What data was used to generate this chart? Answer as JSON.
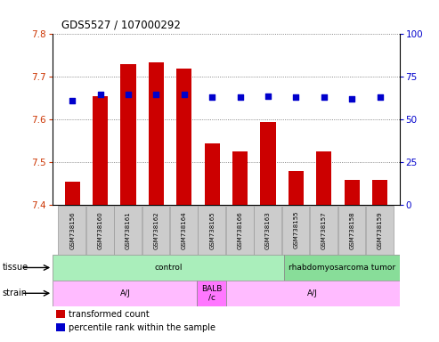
{
  "title": "GDS5527 / 107000292",
  "samples": [
    "GSM738156",
    "GSM738160",
    "GSM738161",
    "GSM738162",
    "GSM738164",
    "GSM738165",
    "GSM738166",
    "GSM738163",
    "GSM738155",
    "GSM738157",
    "GSM738158",
    "GSM738159"
  ],
  "transformed_count": [
    7.455,
    7.655,
    7.73,
    7.735,
    7.72,
    7.545,
    7.525,
    7.595,
    7.48,
    7.525,
    7.46,
    7.46
  ],
  "percentile_rank": [
    61,
    65,
    65,
    65,
    65,
    63,
    63,
    64,
    63,
    63,
    62,
    63
  ],
  "ylim_left": [
    7.4,
    7.8
  ],
  "ylim_right": [
    0,
    100
  ],
  "yticks_left": [
    7.4,
    7.5,
    7.6,
    7.7,
    7.8
  ],
  "yticks_right": [
    0,
    25,
    50,
    75,
    100
  ],
  "bar_color": "#cc0000",
  "dot_color": "#0000cc",
  "tissue_labels": [
    {
      "text": "control",
      "start": 0,
      "end": 7,
      "color": "#aaeebb"
    },
    {
      "text": "rhabdomyosarcoma tumor",
      "start": 8,
      "end": 11,
      "color": "#88dd99"
    }
  ],
  "strain_labels": [
    {
      "text": "A/J",
      "start": 0,
      "end": 4,
      "color": "#ffbbff"
    },
    {
      "text": "BALB\n/c",
      "start": 5,
      "end": 5,
      "color": "#ff77ff"
    },
    {
      "text": "A/J",
      "start": 6,
      "end": 11,
      "color": "#ffbbff"
    }
  ],
  "tissue_row_label": "tissue",
  "strain_row_label": "strain",
  "legend_items": [
    {
      "color": "#cc0000",
      "label": "transformed count"
    },
    {
      "color": "#0000cc",
      "label": "percentile rank within the sample"
    }
  ],
  "axis_left_color": "#cc3300",
  "axis_right_color": "#0000cc",
  "grid_color": "#666666",
  "bg_color": "#ffffff",
  "bar_bottom": 7.4,
  "sample_box_color": "#cccccc",
  "sample_box_edge": "#999999"
}
